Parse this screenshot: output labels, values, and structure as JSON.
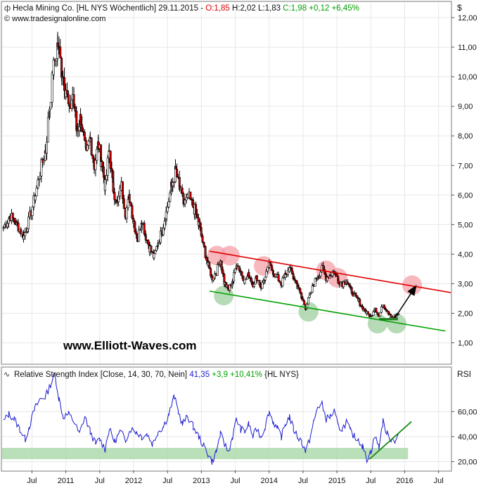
{
  "header": {
    "symbol_label": "Hecla Mining Co. [HL NYS  Wöchentlich] 29.11.2015 - ",
    "open_label": "O:1,85",
    "hl_label": " H:2,02 L:1,83 ",
    "close_label": "C:1,98 +0,12 +6,45%",
    "copyright": "© www.tradesignalonline.com",
    "currency": "$"
  },
  "rsi_header": {
    "label": "Relative Strength Index [Close, 14, 30, 70, Nein] ",
    "value": "41,35",
    "change": " +3,9 +10,41%",
    "suffix": " {HL NYS}",
    "axis_title": "RSI"
  },
  "watermark": "www.Elliott-Waves.com",
  "colors": {
    "price_up": "#ffffff",
    "price_down": "#cc0000",
    "price_wick": "#000000",
    "resistance": "#e00000",
    "support": "#00a000",
    "red_circle": "#f4a0a8",
    "green_circle": "#9ecf9e",
    "rsi_line": "#1a1ad0",
    "rsi_band": "#a8d8a8",
    "value_blue": "#2020c0",
    "value_green": "#00a000",
    "value_red": "#e00000"
  },
  "chart_data": [
    {
      "type": "candlestick",
      "title": "Hecla Mining Co. [HL NYS Wöchentlich]",
      "ylabel": "$",
      "ylim": [
        0.3,
        12.5
      ],
      "y_ticks": [
        "1,00",
        "2,00",
        "3,00",
        "4,00",
        "5,00",
        "6,00",
        "7,00",
        "8,00",
        "9,00",
        "10,00",
        "11,00",
        "12,00"
      ],
      "y_tick_values": [
        1,
        2,
        3,
        4,
        5,
        6,
        7,
        8,
        9,
        10,
        11,
        12
      ],
      "x_ticks": [
        "Jul",
        "2011",
        "Jul",
        "2012",
        "Jul",
        "2013",
        "Jul",
        "2014",
        "Jul",
        "2015",
        "Jul",
        "2016",
        "Jul"
      ],
      "x_tick_dates": [
        2010.5,
        2011.0,
        2011.5,
        2012.0,
        2012.5,
        2013.0,
        2013.5,
        2014.0,
        2014.5,
        2015.0,
        2015.5,
        2016.0,
        2016.5
      ],
      "xlim": [
        2010.06,
        2016.68
      ],
      "series": [
        {
          "close_path": [
            [
              2010.08,
              4.9
            ],
            [
              2010.18,
              5.3
            ],
            [
              2010.28,
              5.0
            ],
            [
              2010.38,
              4.6
            ],
            [
              2010.45,
              5.1
            ],
            [
              2010.55,
              6.0
            ],
            [
              2010.62,
              6.8
            ],
            [
              2010.7,
              7.5
            ],
            [
              2010.76,
              9.0
            ],
            [
              2010.82,
              10.3
            ],
            [
              2010.88,
              11.1
            ],
            [
              2010.94,
              10.2
            ],
            [
              2011.0,
              9.6
            ],
            [
              2011.05,
              8.8
            ],
            [
              2011.1,
              9.4
            ],
            [
              2011.16,
              8.2
            ],
            [
              2011.22,
              8.6
            ],
            [
              2011.3,
              7.3
            ],
            [
              2011.36,
              7.9
            ],
            [
              2011.42,
              7.0
            ],
            [
              2011.48,
              7.7
            ],
            [
              2011.52,
              7.2
            ],
            [
              2011.58,
              6.3
            ],
            [
              2011.64,
              7.5
            ],
            [
              2011.7,
              6.2
            ],
            [
              2011.76,
              5.7
            ],
            [
              2011.82,
              6.3
            ],
            [
              2011.88,
              5.4
            ],
            [
              2011.94,
              5.9
            ],
            [
              2012.0,
              5.1
            ],
            [
              2012.06,
              4.5
            ],
            [
              2012.12,
              5.2
            ],
            [
              2012.18,
              4.6
            ],
            [
              2012.24,
              4.2
            ],
            [
              2012.3,
              3.9
            ],
            [
              2012.36,
              4.4
            ],
            [
              2012.42,
              4.8
            ],
            [
              2012.48,
              5.4
            ],
            [
              2012.56,
              6.3
            ],
            [
              2012.62,
              6.8
            ],
            [
              2012.68,
              6.2
            ],
            [
              2012.74,
              5.7
            ],
            [
              2012.82,
              5.9
            ],
            [
              2012.9,
              5.5
            ],
            [
              2012.96,
              5.0
            ],
            [
              2013.04,
              4.2
            ],
            [
              2013.1,
              3.6
            ],
            [
              2013.16,
              3.2
            ],
            [
              2013.22,
              3.4
            ],
            [
              2013.28,
              3.8
            ],
            [
              2013.34,
              3.0
            ],
            [
              2013.4,
              2.8
            ],
            [
              2013.46,
              3.1
            ],
            [
              2013.52,
              3.7
            ],
            [
              2013.58,
              3.4
            ],
            [
              2013.64,
              3.1
            ],
            [
              2013.7,
              3.3
            ],
            [
              2013.76,
              3.0
            ],
            [
              2013.82,
              3.2
            ],
            [
              2013.88,
              2.9
            ],
            [
              2013.94,
              3.2
            ],
            [
              2014.0,
              3.6
            ],
            [
              2014.06,
              3.4
            ],
            [
              2014.12,
              3.2
            ],
            [
              2014.18,
              3.0
            ],
            [
              2014.24,
              3.3
            ],
            [
              2014.3,
              3.5
            ],
            [
              2014.36,
              3.2
            ],
            [
              2014.42,
              2.9
            ],
            [
              2014.48,
              2.5
            ],
            [
              2014.54,
              2.2
            ],
            [
              2014.6,
              2.6
            ],
            [
              2014.66,
              3.0
            ],
            [
              2014.72,
              3.3
            ],
            [
              2014.78,
              3.5
            ],
            [
              2014.84,
              3.2
            ],
            [
              2014.9,
              3.3
            ],
            [
              2014.96,
              3.4
            ],
            [
              2015.02,
              3.1
            ],
            [
              2015.08,
              3.0
            ],
            [
              2015.14,
              3.1
            ],
            [
              2015.2,
              2.8
            ],
            [
              2015.26,
              2.6
            ],
            [
              2015.32,
              2.4
            ],
            [
              2015.38,
              2.2
            ],
            [
              2015.44,
              2.0
            ],
            [
              2015.5,
              1.9
            ],
            [
              2015.56,
              2.2
            ],
            [
              2015.62,
              1.9
            ],
            [
              2015.68,
              2.3
            ],
            [
              2015.74,
              2.1
            ],
            [
              2015.8,
              1.9
            ],
            [
              2015.86,
              1.85
            ],
            [
              2015.91,
              1.98
            ]
          ]
        }
      ],
      "last_close": 1.98,
      "trendlines": [
        {
          "name": "resistance",
          "from": [
            2013.12,
            4.1
          ],
          "to": [
            2016.68,
            2.7
          ]
        },
        {
          "name": "support",
          "from": [
            2013.12,
            2.75
          ],
          "to": [
            2016.6,
            1.4
          ]
        }
      ],
      "projection_arrow": {
        "from": [
          2015.86,
          1.86
        ],
        "to": [
          2016.16,
          2.9
        ]
      },
      "support_band": {
        "from": [
          2015.62,
          1.8
        ],
        "to": [
          2015.9,
          1.8
        ]
      },
      "red_circles": [
        [
          2013.23,
          3.95
        ],
        [
          2013.42,
          3.95
        ],
        [
          2013.92,
          3.6
        ],
        [
          2014.84,
          3.45
        ],
        [
          2015.01,
          3.2
        ],
        [
          2016.11,
          2.95
        ]
      ],
      "green_circles": [
        [
          2013.33,
          2.6
        ],
        [
          2014.58,
          2.05
        ],
        [
          2015.6,
          1.65
        ],
        [
          2015.88,
          1.65
        ]
      ]
    },
    {
      "type": "line",
      "title": "Relative Strength Index [Close, 14, 30, 70, Nein]",
      "ylabel": "RSI",
      "ylim": [
        13,
        95
      ],
      "y_ticks": [
        "20,00",
        "40,00",
        "60,00"
      ],
      "y_tick_values": [
        20,
        40,
        60
      ],
      "band": [
        22,
        31
      ],
      "series": [
        {
          "name": "RSI",
          "points": [
            [
              2010.08,
              52
            ],
            [
              2010.16,
              58
            ],
            [
              2010.24,
              54
            ],
            [
              2010.32,
              46
            ],
            [
              2010.4,
              38
            ],
            [
              2010.46,
              48
            ],
            [
              2010.54,
              62
            ],
            [
              2010.62,
              70
            ],
            [
              2010.7,
              72
            ],
            [
              2010.78,
              82
            ],
            [
              2010.84,
              90
            ],
            [
              2010.9,
              70
            ],
            [
              2010.96,
              56
            ],
            [
              2011.04,
              58
            ],
            [
              2011.12,
              52
            ],
            [
              2011.2,
              42
            ],
            [
              2011.28,
              56
            ],
            [
              2011.36,
              44
            ],
            [
              2011.44,
              34
            ],
            [
              2011.5,
              38
            ],
            [
              2011.58,
              30
            ],
            [
              2011.64,
              46
            ],
            [
              2011.72,
              36
            ],
            [
              2011.8,
              44
            ],
            [
              2011.88,
              38
            ],
            [
              2011.96,
              46
            ],
            [
              2012.04,
              44
            ],
            [
              2012.12,
              40
            ],
            [
              2012.2,
              42
            ],
            [
              2012.28,
              34
            ],
            [
              2012.36,
              44
            ],
            [
              2012.44,
              48
            ],
            [
              2012.52,
              58
            ],
            [
              2012.6,
              72
            ],
            [
              2012.66,
              60
            ],
            [
              2012.72,
              50
            ],
            [
              2012.8,
              56
            ],
            [
              2012.88,
              48
            ],
            [
              2012.96,
              40
            ],
            [
              2013.04,
              32
            ],
            [
              2013.1,
              26
            ],
            [
              2013.16,
              20
            ],
            [
              2013.22,
              28
            ],
            [
              2013.28,
              42
            ],
            [
              2013.34,
              34
            ],
            [
              2013.4,
              28
            ],
            [
              2013.46,
              40
            ],
            [
              2013.52,
              54
            ],
            [
              2013.58,
              46
            ],
            [
              2013.64,
              44
            ],
            [
              2013.7,
              50
            ],
            [
              2013.76,
              40
            ],
            [
              2013.82,
              46
            ],
            [
              2013.88,
              40
            ],
            [
              2013.94,
              48
            ],
            [
              2014.0,
              60
            ],
            [
              2014.06,
              52
            ],
            [
              2014.12,
              46
            ],
            [
              2014.18,
              40
            ],
            [
              2014.24,
              50
            ],
            [
              2014.3,
              56
            ],
            [
              2014.36,
              46
            ],
            [
              2014.42,
              40
            ],
            [
              2014.48,
              36
            ],
            [
              2014.54,
              28
            ],
            [
              2014.6,
              38
            ],
            [
              2014.66,
              52
            ],
            [
              2014.72,
              64
            ],
            [
              2014.78,
              66
            ],
            [
              2014.84,
              54
            ],
            [
              2014.9,
              56
            ],
            [
              2014.96,
              60
            ],
            [
              2015.02,
              48
            ],
            [
              2015.08,
              46
            ],
            [
              2015.14,
              52
            ],
            [
              2015.2,
              44
            ],
            [
              2015.26,
              40
            ],
            [
              2015.32,
              38
            ],
            [
              2015.38,
              32
            ],
            [
              2015.44,
              22
            ],
            [
              2015.5,
              28
            ],
            [
              2015.56,
              40
            ],
            [
              2015.62,
              32
            ],
            [
              2015.68,
              52
            ],
            [
              2015.74,
              42
            ],
            [
              2015.8,
              38
            ],
            [
              2015.86,
              37
            ],
            [
              2015.91,
              41.35
            ]
          ]
        }
      ],
      "trendline": {
        "from": [
          2015.48,
          22
        ],
        "to": [
          2016.1,
          52
        ]
      }
    }
  ]
}
